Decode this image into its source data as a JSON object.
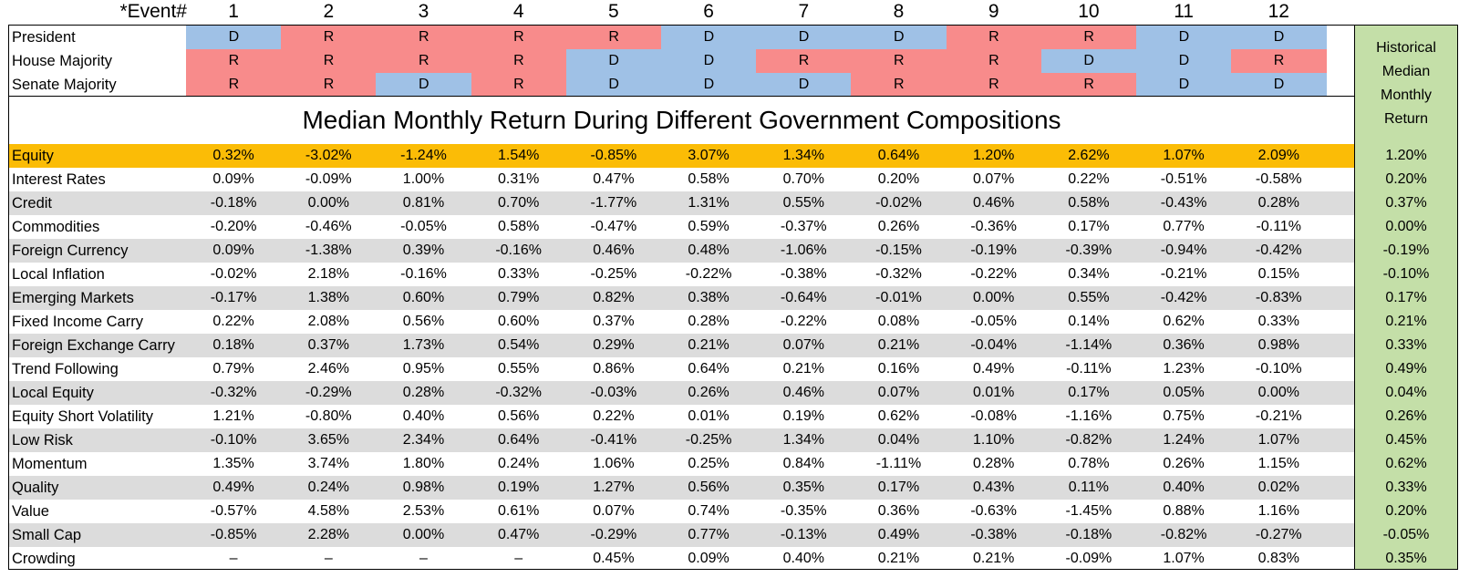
{
  "colors": {
    "D": "#9fc1e6",
    "R": "#f88b8b",
    "highlight": "#fbbc06",
    "stripe": "#dcdcdc",
    "historical": "#c4dfa8"
  },
  "chart_data": {
    "type": "table",
    "event_label": "*Event#",
    "events": [
      "1",
      "2",
      "3",
      "4",
      "5",
      "6",
      "7",
      "8",
      "9",
      "10",
      "11",
      "12"
    ],
    "composition": [
      {
        "label": "President",
        "values": [
          "D",
          "R",
          "R",
          "R",
          "R",
          "D",
          "D",
          "D",
          "R",
          "R",
          "D",
          "D"
        ]
      },
      {
        "label": "House Majority",
        "values": [
          "R",
          "R",
          "R",
          "R",
          "D",
          "D",
          "R",
          "R",
          "R",
          "D",
          "D",
          "R"
        ]
      },
      {
        "label": "Senate Majority",
        "values": [
          "R",
          "R",
          "D",
          "R",
          "D",
          "D",
          "D",
          "R",
          "R",
          "R",
          "D",
          "D"
        ]
      }
    ],
    "title": "Median Monthly Return During Different Government Compositions",
    "historical_header": [
      "Historical",
      "Median",
      "Monthly",
      "Return"
    ],
    "highlight_row": "Equity",
    "rows": [
      {
        "label": "Equity",
        "values": [
          "0.32%",
          "-3.02%",
          "-1.24%",
          "1.54%",
          "-0.85%",
          "3.07%",
          "1.34%",
          "0.64%",
          "1.20%",
          "2.62%",
          "1.07%",
          "2.09%"
        ],
        "historical": "1.20%"
      },
      {
        "label": "Interest Rates",
        "values": [
          "0.09%",
          "-0.09%",
          "1.00%",
          "0.31%",
          "0.47%",
          "0.58%",
          "0.70%",
          "0.20%",
          "0.07%",
          "0.22%",
          "-0.51%",
          "-0.58%"
        ],
        "historical": "0.20%"
      },
      {
        "label": "Credit",
        "values": [
          "-0.18%",
          "0.00%",
          "0.81%",
          "0.70%",
          "-1.77%",
          "1.31%",
          "0.55%",
          "-0.02%",
          "0.46%",
          "0.58%",
          "-0.43%",
          "0.28%"
        ],
        "historical": "0.37%"
      },
      {
        "label": "Commodities",
        "values": [
          "-0.20%",
          "-0.46%",
          "-0.05%",
          "0.58%",
          "-0.47%",
          "0.59%",
          "-0.37%",
          "0.26%",
          "-0.36%",
          "0.17%",
          "0.77%",
          "-0.11%"
        ],
        "historical": "0.00%"
      },
      {
        "label": "Foreign Currency",
        "values": [
          "0.09%",
          "-1.38%",
          "0.39%",
          "-0.16%",
          "0.46%",
          "0.48%",
          "-1.06%",
          "-0.15%",
          "-0.19%",
          "-0.39%",
          "-0.94%",
          "-0.42%"
        ],
        "historical": "-0.19%"
      },
      {
        "label": "Local Inflation",
        "values": [
          "-0.02%",
          "2.18%",
          "-0.16%",
          "0.33%",
          "-0.25%",
          "-0.22%",
          "-0.38%",
          "-0.32%",
          "-0.22%",
          "0.34%",
          "-0.21%",
          "0.15%"
        ],
        "historical": "-0.10%"
      },
      {
        "label": "Emerging Markets",
        "values": [
          "-0.17%",
          "1.38%",
          "0.60%",
          "0.79%",
          "0.82%",
          "0.38%",
          "-0.64%",
          "-0.01%",
          "0.00%",
          "0.55%",
          "-0.42%",
          "-0.83%"
        ],
        "historical": "0.17%"
      },
      {
        "label": "Fixed Income Carry",
        "values": [
          "0.22%",
          "2.08%",
          "0.56%",
          "0.60%",
          "0.37%",
          "0.28%",
          "-0.22%",
          "0.08%",
          "-0.05%",
          "0.14%",
          "0.62%",
          "0.33%"
        ],
        "historical": "0.21%"
      },
      {
        "label": "Foreign Exchange Carry",
        "values": [
          "0.18%",
          "0.37%",
          "1.73%",
          "0.54%",
          "0.29%",
          "0.21%",
          "0.07%",
          "0.21%",
          "-0.04%",
          "-1.14%",
          "0.36%",
          "0.98%"
        ],
        "historical": "0.33%"
      },
      {
        "label": "Trend Following",
        "values": [
          "0.79%",
          "2.46%",
          "0.95%",
          "0.55%",
          "0.86%",
          "0.64%",
          "0.21%",
          "0.16%",
          "0.49%",
          "-0.11%",
          "1.23%",
          "-0.10%"
        ],
        "historical": "0.49%"
      },
      {
        "label": "Local Equity",
        "values": [
          "-0.32%",
          "-0.29%",
          "0.28%",
          "-0.32%",
          "-0.03%",
          "0.26%",
          "0.46%",
          "0.07%",
          "0.01%",
          "0.17%",
          "0.05%",
          "0.00%"
        ],
        "historical": "0.04%"
      },
      {
        "label": "Equity Short Volatility",
        "values": [
          "1.21%",
          "-0.80%",
          "0.40%",
          "0.56%",
          "0.22%",
          "0.01%",
          "0.19%",
          "0.62%",
          "-0.08%",
          "-1.16%",
          "0.75%",
          "-0.21%"
        ],
        "historical": "0.26%"
      },
      {
        "label": "Low Risk",
        "values": [
          "-0.10%",
          "3.65%",
          "2.34%",
          "0.64%",
          "-0.41%",
          "-0.25%",
          "1.34%",
          "0.04%",
          "1.10%",
          "-0.82%",
          "1.24%",
          "1.07%"
        ],
        "historical": "0.45%"
      },
      {
        "label": "Momentum",
        "values": [
          "1.35%",
          "3.74%",
          "1.80%",
          "0.24%",
          "1.06%",
          "0.25%",
          "0.84%",
          "-1.11%",
          "0.28%",
          "0.78%",
          "0.26%",
          "1.15%"
        ],
        "historical": "0.62%"
      },
      {
        "label": "Quality",
        "values": [
          "0.49%",
          "0.24%",
          "0.98%",
          "0.19%",
          "1.27%",
          "0.56%",
          "0.35%",
          "0.17%",
          "0.43%",
          "0.11%",
          "0.40%",
          "0.02%"
        ],
        "historical": "0.33%"
      },
      {
        "label": "Value",
        "values": [
          "-0.57%",
          "4.58%",
          "2.53%",
          "0.61%",
          "0.07%",
          "0.74%",
          "-0.35%",
          "0.36%",
          "-0.63%",
          "-1.45%",
          "0.88%",
          "1.16%"
        ],
        "historical": "0.20%"
      },
      {
        "label": "Small Cap",
        "values": [
          "-0.85%",
          "2.28%",
          "0.00%",
          "0.47%",
          "-0.29%",
          "0.77%",
          "-0.13%",
          "0.49%",
          "-0.38%",
          "-0.18%",
          "-0.82%",
          "-0.27%"
        ],
        "historical": "-0.05%"
      },
      {
        "label": "Crowding",
        "values": [
          "–",
          "–",
          "–",
          "–",
          "0.45%",
          "0.09%",
          "0.40%",
          "0.21%",
          "0.21%",
          "-0.09%",
          "1.07%",
          "0.83%"
        ],
        "historical": "0.35%"
      }
    ]
  }
}
